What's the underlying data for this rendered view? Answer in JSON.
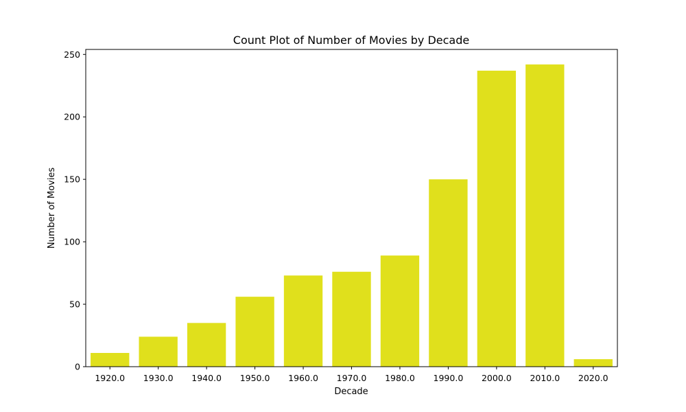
{
  "chart_data": {
    "type": "bar",
    "title": "Count Plot of Number of Movies by Decade",
    "xlabel": "Decade",
    "ylabel": "Number of Movies",
    "categories": [
      "1920.0",
      "1930.0",
      "1940.0",
      "1950.0",
      "1960.0",
      "1970.0",
      "1980.0",
      "1990.0",
      "2000.0",
      "2010.0",
      "2020.0"
    ],
    "values": [
      11,
      24,
      35,
      56,
      73,
      76,
      89,
      150,
      237,
      242,
      6
    ],
    "ylim": [
      0,
      254
    ],
    "yticks": [
      0,
      50,
      100,
      150,
      200,
      250
    ],
    "bar_color": "#e0e01c",
    "grid": false,
    "legend": false
  }
}
